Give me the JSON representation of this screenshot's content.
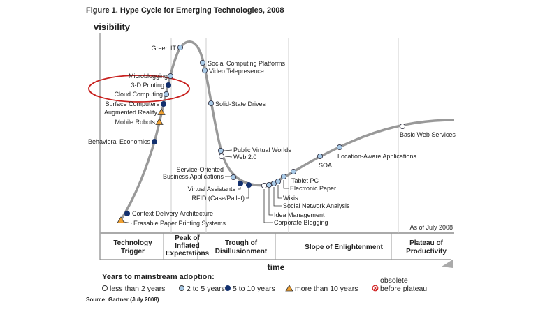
{
  "title": "Figure 1. Hype Cycle for Emerging Technologies, 2008",
  "y_axis_label": "visibility",
  "x_axis_label": "time",
  "as_of": "As of July 2008",
  "phases": [
    {
      "line1": "Technology",
      "line2": "Trigger",
      "line3": ""
    },
    {
      "line1": "Peak of",
      "line2": "Inflated",
      "line3": "Expectations"
    },
    {
      "line1": "Trough of",
      "line2": "Disillusionment",
      "line3": ""
    },
    {
      "line1": "Slope of Enlightenment",
      "line2": "",
      "line3": ""
    },
    {
      "line1": "Plateau of",
      "line2": "Productivity",
      "line3": ""
    }
  ],
  "legend": {
    "heading": "Years to mainstream adoption:",
    "items": [
      {
        "label": "less than 2 years",
        "marker": "white-circle"
      },
      {
        "label": "2 to 5 years",
        "marker": "light-blue-circle"
      },
      {
        "label": "5 to 10 years",
        "marker": "dark-blue-circle"
      },
      {
        "label": "more than 10 years",
        "marker": "orange-triangle"
      },
      {
        "label_line1": "obsolete",
        "label": "before plateau",
        "marker": "red-crossed-circle"
      }
    ]
  },
  "source": "Source: Gartner (July 2008)",
  "colors": {
    "curve": "#999999",
    "white": "#ffffff",
    "light_blue": "#a9cbe8",
    "dark_blue": "#13306e",
    "orange": "#f0a030",
    "highlight": "#c8201e"
  },
  "technologies": [
    {
      "name": "Green IT",
      "category": "2 to 5 years"
    },
    {
      "name": "Social Computing Platforms",
      "category": "2 to 5 years"
    },
    {
      "name": "Video Telepresence",
      "category": "2 to 5 years"
    },
    {
      "name": "Microblogging",
      "category": "2 to 5 years"
    },
    {
      "name": "3-D Printing",
      "category": "5 to 10 years"
    },
    {
      "name": "Cloud Computing",
      "category": "2 to 5 years"
    },
    {
      "name": "Surface Computers",
      "category": "5 to 10 years"
    },
    {
      "name": "Augmented Reality",
      "category": "more than 10 years"
    },
    {
      "name": "Mobile Robots",
      "category": "more than 10 years"
    },
    {
      "name": "Behavioral Economics",
      "category": "5 to 10 years"
    },
    {
      "name": "Solid-State Drives",
      "category": "2 to 5 years"
    },
    {
      "name": "Public Virtual Worlds",
      "category": "2 to 5 years"
    },
    {
      "name": "Web 2.0",
      "category": "less than 2 years"
    },
    {
      "name": "Service-Oriented Business Applications",
      "category": "2 to 5 years"
    },
    {
      "name": "Virtual Assistants",
      "category": "5 to 10 years"
    },
    {
      "name": "RFID (Case/Pallet)",
      "category": "5 to 10 years"
    },
    {
      "name": "Corporate Blogging",
      "category": "less than 2 years"
    },
    {
      "name": "Idea Management",
      "category": "2 to 5 years"
    },
    {
      "name": "Social Network Analysis",
      "category": "2 to 5 years"
    },
    {
      "name": "Wikis",
      "category": "2 to 5 years"
    },
    {
      "name": "Electronic Paper",
      "category": "2 to 5 years"
    },
    {
      "name": "Tablet PC",
      "category": "2 to 5 years"
    },
    {
      "name": "SOA",
      "category": "2 to 5 years"
    },
    {
      "name": "Location-Aware Applications",
      "category": "2 to 5 years"
    },
    {
      "name": "Basic Web Services",
      "category": "less than 2 years"
    },
    {
      "name": "Context Delivery Architecture",
      "category": "5 to 10 years"
    },
    {
      "name": "Erasable Paper Printing Systems",
      "category": "more than 10 years"
    }
  ],
  "highlighted": [
    "Microblogging",
    "3-D Printing",
    "Cloud Computing"
  ]
}
